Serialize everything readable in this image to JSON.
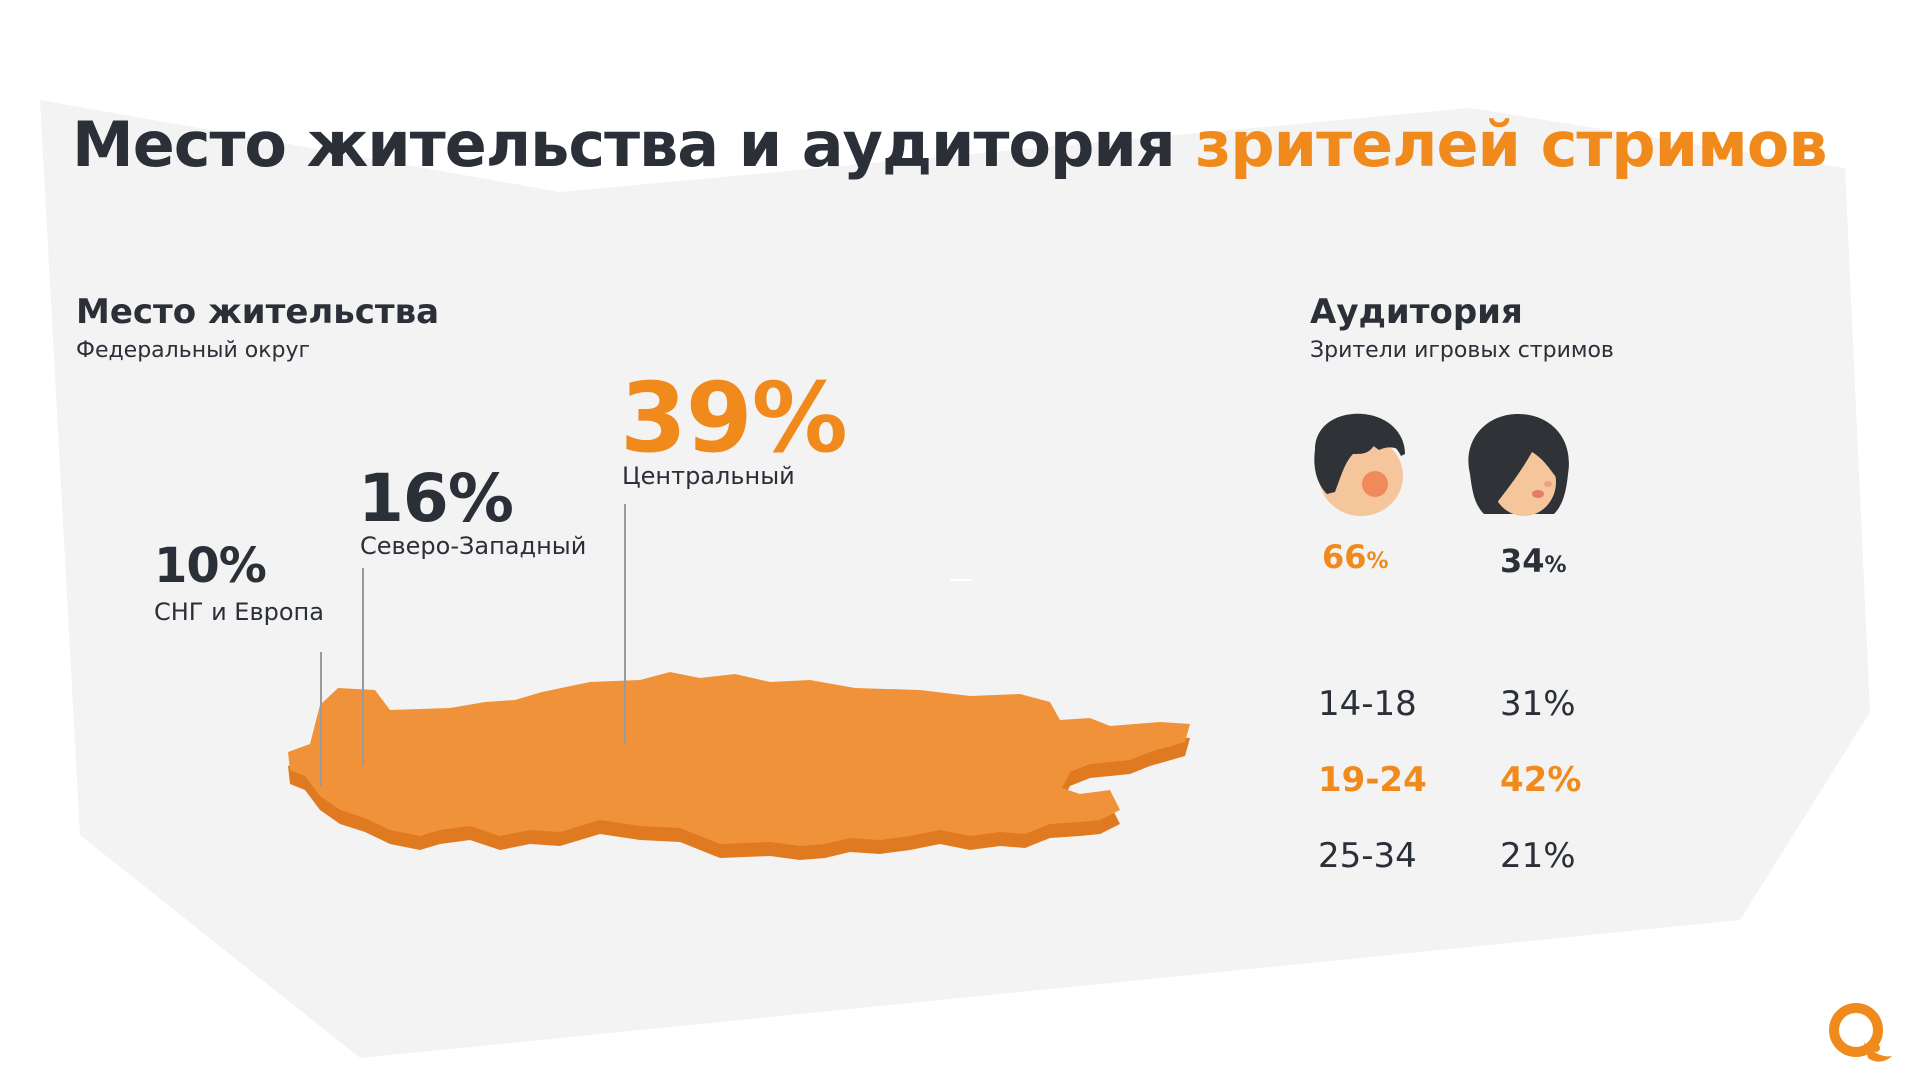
{
  "title": {
    "main": "Место жительства и аудитория",
    "accent": "зрителей стримов"
  },
  "residence": {
    "heading": "Место жительства",
    "subheading": "Федеральный округ",
    "regions": [
      {
        "value": "39%",
        "label": "Центральный"
      },
      {
        "value": "16%",
        "label": "Северо-Западный"
      },
      {
        "value": "10%",
        "label": "СНГ и Европа"
      }
    ]
  },
  "audience": {
    "heading": "Аудитория",
    "subheading": "Зрители игровых стримов",
    "male": {
      "value": "66",
      "unit": "%"
    },
    "female": {
      "value": "34",
      "unit": "%"
    },
    "ages": [
      {
        "range": "14-18",
        "value": "31%",
        "highlight": false
      },
      {
        "range": "19-24",
        "value": "42%",
        "highlight": true
      },
      {
        "range": "25-34",
        "value": "21%",
        "highlight": false
      }
    ]
  },
  "colors": {
    "accent": "#f08a1c",
    "text": "#2b2f38",
    "background_shape": "#f3f3f3",
    "map_fill": "#f0923a",
    "map_shadow": "#e07a20"
  },
  "icons": [
    "male-avatar-icon",
    "female-avatar-icon",
    "qiwi-logo-icon",
    "russia-map"
  ]
}
